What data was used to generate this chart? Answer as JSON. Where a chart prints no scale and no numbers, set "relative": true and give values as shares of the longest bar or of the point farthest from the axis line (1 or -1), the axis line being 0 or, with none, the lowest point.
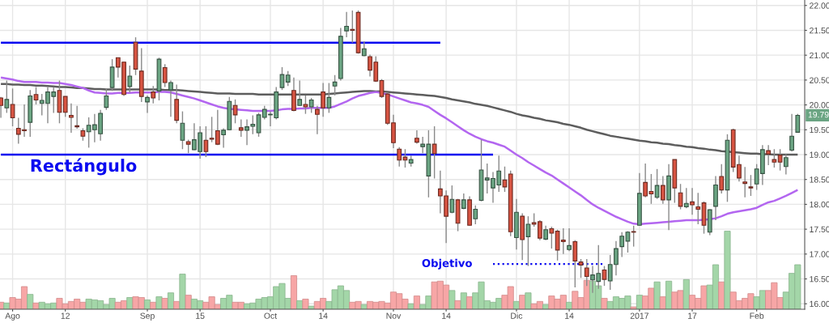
{
  "chart_data": [
    {
      "type": "candlestick",
      "categories": [
        null,
        null,
        "Ago",
        null,
        null,
        null,
        null,
        null,
        null,
        null,
        null,
        "12",
        null,
        null,
        null,
        null,
        null,
        null,
        null,
        null,
        null,
        null,
        null,
        null,
        null,
        "Sep",
        null,
        null,
        null,
        null,
        null,
        null,
        null,
        null,
        "15",
        null,
        null,
        null,
        null,
        null,
        null,
        null,
        null,
        null,
        null,
        null,
        "Oct",
        null,
        null,
        null,
        null,
        null,
        null,
        null,
        null,
        "14",
        null,
        null,
        null,
        null,
        null,
        null,
        null,
        null,
        null,
        null,
        null,
        "Nov",
        null,
        null,
        null,
        null,
        null,
        null,
        null,
        null,
        "14",
        null,
        null,
        null,
        null,
        null,
        null,
        null,
        null,
        null,
        null,
        null,
        "Dic",
        null,
        null,
        null,
        null,
        null,
        null,
        null,
        null,
        "14",
        null,
        null,
        null,
        null,
        null,
        null,
        null,
        null,
        null,
        null,
        null,
        "2017",
        null,
        null,
        null,
        null,
        null,
        null,
        null,
        null,
        "17",
        null,
        null,
        null,
        null,
        null,
        null,
        null,
        null,
        null,
        null,
        "Feb",
        null,
        null,
        null,
        null,
        null,
        null,
        null
      ],
      "ohlc": [
        [
          20.14,
          20.16,
          19.74,
          19.99
        ],
        [
          19.94,
          20.49,
          19.84,
          20.11
        ],
        [
          20.01,
          20.33,
          19.57,
          19.74
        ],
        [
          19.53,
          19.74,
          19.22,
          19.41
        ],
        [
          19.5,
          20.01,
          19.36,
          19.48
        ],
        [
          19.65,
          20.3,
          19.36,
          20.18
        ],
        [
          20.21,
          20.36,
          20.01,
          20.1
        ],
        [
          20.03,
          20.22,
          19.79,
          20.09
        ],
        [
          20.03,
          20.36,
          19.63,
          20.26
        ],
        [
          20.17,
          20.36,
          19.84,
          20.26
        ],
        [
          20.29,
          20.49,
          19.63,
          19.85
        ],
        [
          20.17,
          20.17,
          19.76,
          19.85
        ],
        [
          19.79,
          20.03,
          19.44,
          19.75
        ],
        [
          19.58,
          19.98,
          19.52,
          19.56
        ],
        [
          19.48,
          19.53,
          19.28,
          19.37
        ],
        [
          19.46,
          19.75,
          19.14,
          19.59
        ],
        [
          19.5,
          19.82,
          19.25,
          19.6
        ],
        [
          19.42,
          19.9,
          19.28,
          19.83
        ],
        [
          19.95,
          20.33,
          19.9,
          20.18
        ],
        [
          20.35,
          20.92,
          20.28,
          20.76
        ],
        [
          20.95,
          20.95,
          20.55,
          20.76
        ],
        [
          20.86,
          20.87,
          20.18,
          20.21
        ],
        [
          20.37,
          20.79,
          20.25,
          20.58
        ],
        [
          21.26,
          21.36,
          20.6,
          20.72
        ],
        [
          20.68,
          21.14,
          20.06,
          20.17
        ],
        [
          20.06,
          20.19,
          19.84,
          20.15
        ],
        [
          20.26,
          20.38,
          20.03,
          20.14
        ],
        [
          20.28,
          20.95,
          20.09,
          20.92
        ],
        [
          20.75,
          20.82,
          20.36,
          20.45
        ],
        [
          20.3,
          20.49,
          19.76,
          20.45
        ],
        [
          20.11,
          20.41,
          19.63,
          19.69
        ],
        [
          19.29,
          19.87,
          19.11,
          19.63
        ],
        [
          19.26,
          19.3,
          19.03,
          19.21
        ],
        [
          19.1,
          19.63,
          19.09,
          19.3
        ],
        [
          19.06,
          19.57,
          18.92,
          19.44
        ],
        [
          19.29,
          19.57,
          18.95,
          19.06
        ],
        [
          19.33,
          19.76,
          19.25,
          19.31
        ],
        [
          19.48,
          19.9,
          19.19,
          19.21
        ],
        [
          19.4,
          19.53,
          19.14,
          19.49
        ],
        [
          19.5,
          20.16,
          19.49,
          20.07
        ],
        [
          19.99,
          20.11,
          19.63,
          19.8
        ],
        [
          19.54,
          19.71,
          19.36,
          19.49
        ],
        [
          19.49,
          19.71,
          19.19,
          19.56
        ],
        [
          19.57,
          19.79,
          19.41,
          19.61
        ],
        [
          19.44,
          19.84,
          19.36,
          19.8
        ],
        [
          19.75,
          19.98,
          19.71,
          19.91
        ],
        [
          19.8,
          19.87,
          19.57,
          19.81
        ],
        [
          19.74,
          20.36,
          19.71,
          20.26
        ],
        [
          20.35,
          20.76,
          20.3,
          20.61
        ],
        [
          20.46,
          20.68,
          20.38,
          20.6
        ],
        [
          20.29,
          20.55,
          19.87,
          19.89
        ],
        [
          19.99,
          20.49,
          19.98,
          20.11
        ],
        [
          20.01,
          20.19,
          19.82,
          19.96
        ],
        [
          19.96,
          20.14,
          19.84,
          20.1
        ],
        [
          19.91,
          19.98,
          19.41,
          19.81
        ],
        [
          20.26,
          20.44,
          19.76,
          19.94
        ],
        [
          19.94,
          20.44,
          19.84,
          20.15
        ],
        [
          20.38,
          20.6,
          20.19,
          20.46
        ],
        [
          20.53,
          21.55,
          20.49,
          21.38
        ],
        [
          21.49,
          21.87,
          21.36,
          21.58
        ],
        [
          21.52,
          21.9,
          21.25,
          21.5
        ],
        [
          21.86,
          21.9,
          21.03,
          21.05
        ],
        [
          20.99,
          21.28,
          20.98,
          21.13
        ],
        [
          20.97,
          21.01,
          20.57,
          20.7
        ],
        [
          20.86,
          20.98,
          20.46,
          20.48
        ],
        [
          20.49,
          20.52,
          20.14,
          20.17
        ],
        [
          20.22,
          20.25,
          19.6,
          19.63
        ],
        [
          19.64,
          19.8,
          19.13,
          19.24
        ],
        [
          19.11,
          19.15,
          18.76,
          18.89
        ],
        [
          18.95,
          19.11,
          18.74,
          18.89
        ],
        [
          18.83,
          18.98,
          18.76,
          18.9
        ],
        [
          19.33,
          19.49,
          19.22,
          19.25
        ],
        [
          19.16,
          19.36,
          19.03,
          19.21
        ],
        [
          18.57,
          19.49,
          18.14,
          19.21
        ],
        [
          19.21,
          19.57,
          18.52,
          19.02
        ],
        [
          18.31,
          18.68,
          17.82,
          18.17
        ],
        [
          18.17,
          18.28,
          17.22,
          17.76
        ],
        [
          17.84,
          18.38,
          17.82,
          18.1
        ],
        [
          18.09,
          18.11,
          17.46,
          17.62
        ],
        [
          17.92,
          18.22,
          17.9,
          18.09
        ],
        [
          18.09,
          18.16,
          17.57,
          17.58
        ],
        [
          17.71,
          17.98,
          17.6,
          17.9
        ],
        [
          18.08,
          19.3,
          18.06,
          18.69
        ],
        [
          18.49,
          18.82,
          18.22,
          18.53
        ],
        [
          18.33,
          18.65,
          18.03,
          18.52
        ],
        [
          18.39,
          18.98,
          18.25,
          18.67
        ],
        [
          18.49,
          18.76,
          18.25,
          18.35
        ],
        [
          18.61,
          18.68,
          17.36,
          17.45
        ],
        [
          17.33,
          18.11,
          17.09,
          17.84
        ],
        [
          17.76,
          17.82,
          16.88,
          17.29
        ],
        [
          17.35,
          17.76,
          16.76,
          17.6
        ],
        [
          17.63,
          17.82,
          17.55,
          17.6
        ],
        [
          17.65,
          17.68,
          17.28,
          17.32
        ],
        [
          17.3,
          17.57,
          17.28,
          17.49
        ],
        [
          17.51,
          17.55,
          17.11,
          17.42
        ],
        [
          17.46,
          17.49,
          16.87,
          17.08
        ],
        [
          17.28,
          17.52,
          17.0,
          17.25
        ],
        [
          17.09,
          17.52,
          17.06,
          17.17
        ],
        [
          17.25,
          17.28,
          16.33,
          16.86
        ],
        [
          16.84,
          16.9,
          16.52,
          16.78
        ],
        [
          16.72,
          16.9,
          16.36,
          16.55
        ],
        [
          16.48,
          16.76,
          16.22,
          16.58
        ],
        [
          16.45,
          17.18,
          16.3,
          16.61
        ],
        [
          16.68,
          16.76,
          16.36,
          16.49
        ],
        [
          16.46,
          16.98,
          16.28,
          16.79
        ],
        [
          16.79,
          17.26,
          16.57,
          17.11
        ],
        [
          17.15,
          17.44,
          16.94,
          17.36
        ],
        [
          17.26,
          17.46,
          17.03,
          17.44
        ],
        [
          17.45,
          17.57,
          17.15,
          17.44
        ],
        [
          17.58,
          18.63,
          17.57,
          18.22
        ],
        [
          18.44,
          18.82,
          18.14,
          18.17
        ],
        [
          18.26,
          18.61,
          18.01,
          18.21
        ],
        [
          18.14,
          18.71,
          18.11,
          18.38
        ],
        [
          18.38,
          18.57,
          18.01,
          18.09
        ],
        [
          18.09,
          18.81,
          17.48,
          18.57
        ],
        [
          18.9,
          18.9,
          18.03,
          18.33
        ],
        [
          18.23,
          18.41,
          17.9,
          17.96
        ],
        [
          17.95,
          18.33,
          17.92,
          18.02
        ],
        [
          18.05,
          18.33,
          17.79,
          17.99
        ],
        [
          17.95,
          18.23,
          17.6,
          17.9
        ],
        [
          18.03,
          18.06,
          17.41,
          17.58
        ],
        [
          17.44,
          17.9,
          17.38,
          17.89
        ],
        [
          17.96,
          18.57,
          17.68,
          18.39
        ],
        [
          18.56,
          18.81,
          18.22,
          18.29
        ],
        [
          18.29,
          19.41,
          18.05,
          19.29
        ],
        [
          19.5,
          19.52,
          18.65,
          18.75
        ],
        [
          18.8,
          18.98,
          18.46,
          18.53
        ],
        [
          18.45,
          18.75,
          18.14,
          18.42
        ],
        [
          18.35,
          18.59,
          18.17,
          18.33
        ],
        [
          18.41,
          18.81,
          18.29,
          18.71
        ],
        [
          18.62,
          19.19,
          18.39,
          19.1
        ],
        [
          19.08,
          19.19,
          18.79,
          19.01
        ],
        [
          18.9,
          19.11,
          18.74,
          18.85
        ],
        [
          18.99,
          19.11,
          18.68,
          18.85
        ],
        [
          18.76,
          19.01,
          18.6,
          18.94
        ],
        [
          19.09,
          19.82,
          19.06,
          19.37
        ],
        [
          19.45,
          19.82,
          19.44,
          19.79
        ]
      ],
      "colors": [
        "#d75442",
        "#6ba583",
        "#d75442",
        "#d75442",
        "#d75442",
        "#6ba583",
        "#d75442",
        "#6ba583",
        "#6ba583",
        "#6ba583",
        "#d75442",
        "#d75442",
        "#d75442",
        "#d75442",
        "#d75442",
        "#6ba583",
        "#6ba583",
        "#6ba583",
        "#6ba583",
        "#6ba583",
        "#d75442",
        "#d75442",
        "#6ba583",
        "#d75442",
        "#d75442",
        "#6ba583",
        "#d75442",
        "#6ba583",
        "#d75442",
        "#6ba583",
        "#d75442",
        "#6ba583",
        "#d75442",
        "#6ba583",
        "#6ba583",
        "#d75442",
        "#d75442",
        "#d75442",
        "#6ba583",
        "#6ba583",
        "#d75442",
        "#d75442",
        "#6ba583",
        "#6ba583",
        "#6ba583",
        "#6ba583",
        "#6ba583",
        "#6ba583",
        "#6ba583",
        "#6ba583",
        "#d75442",
        "#6ba583",
        "#d75442",
        "#6ba583",
        "#d75442",
        "#d75442",
        "#6ba583",
        "#6ba583",
        "#6ba583",
        "#6ba583",
        "#d75442",
        "#d75442",
        "#6ba583",
        "#d75442",
        "#d75442",
        "#d75442",
        "#d75442",
        "#d75442",
        "#d75442",
        "#d75442",
        "#6ba583",
        "#d75442",
        "#6ba583",
        "#6ba583",
        "#d75442",
        "#d75442",
        "#d75442",
        "#6ba583",
        "#d75442",
        "#6ba583",
        "#d75442",
        "#6ba583",
        "#6ba583",
        "#6ba583",
        "#6ba583",
        "#6ba583",
        "#d75442",
        "#d75442",
        "#6ba583",
        "#d75442",
        "#6ba583",
        "#d75442",
        "#d75442",
        "#6ba583",
        "#d75442",
        "#d75442",
        "#d75442",
        "#6ba583",
        "#d75442",
        "#d75442",
        "#d75442",
        "#6ba583",
        "#6ba583",
        "#d75442",
        "#6ba583",
        "#6ba583",
        "#6ba583",
        "#6ba583",
        "#d75442",
        "#6ba583",
        "#d75442",
        "#d75442",
        "#6ba583",
        "#d75442",
        "#6ba583",
        "#d75442",
        "#d75442",
        "#6ba583",
        "#d75442",
        "#d75442",
        "#d75442",
        "#6ba583",
        "#6ba583",
        "#d75442",
        "#6ba583",
        "#d75442",
        "#d75442",
        "#d75442",
        "#d75442",
        "#6ba583",
        "#6ba583",
        "#d75442",
        "#d75442",
        "#d75442",
        "#6ba583",
        "#6ba583",
        "#6ba583"
      ],
      "series": [
        {
          "type": "line",
          "color": "#5d5d5d",
          "values": [
            20.42,
            20.42,
            20.41,
            20.41,
            20.4,
            20.4,
            20.39,
            20.39,
            20.38,
            20.37,
            20.36,
            20.36,
            20.35,
            20.34,
            20.34,
            20.33,
            20.32,
            20.32,
            20.31,
            20.31,
            20.31,
            20.31,
            20.31,
            20.31,
            20.31,
            20.31,
            20.31,
            20.31,
            20.3,
            20.3,
            20.3,
            20.29,
            20.28,
            20.27,
            20.26,
            20.25,
            20.24,
            20.23,
            20.23,
            20.23,
            20.22,
            20.22,
            20.22,
            20.22,
            20.21,
            20.21,
            20.21,
            20.21,
            20.21,
            20.21,
            20.21,
            20.21,
            20.21,
            20.21,
            20.21,
            20.21,
            20.22,
            20.23,
            20.24,
            20.25,
            20.26,
            20.27,
            20.28,
            20.28,
            20.27,
            20.27,
            20.26,
            20.25,
            20.24,
            20.23,
            20.22,
            20.21,
            20.2,
            20.19,
            20.18,
            20.16,
            20.14,
            20.11,
            20.09,
            20.07,
            20.05,
            20.02,
            20.0,
            19.98,
            19.95,
            19.92,
            19.89,
            19.86,
            19.82,
            19.79,
            19.77,
            19.74,
            19.72,
            19.69,
            19.67,
            19.65,
            19.62,
            19.6,
            19.57,
            19.54,
            19.5,
            19.47,
            19.44,
            19.41,
            19.38,
            19.36,
            19.34,
            19.32,
            19.3,
            19.28,
            19.27,
            19.25,
            19.24,
            19.22,
            19.21,
            19.19,
            19.18,
            19.16,
            19.15,
            19.13,
            19.12,
            19.1,
            19.09,
            19.07,
            19.06,
            19.05,
            19.04,
            19.03,
            19.02,
            19.02,
            19.01,
            19.01,
            19.0,
            19.0,
            19.0,
            19.0,
            19.0
          ]
        },
        {
          "type": "line",
          "color": "#b366f0",
          "values": [
            20.55,
            20.53,
            20.51,
            20.48,
            20.46,
            20.46,
            20.46,
            20.45,
            20.45,
            20.44,
            20.44,
            20.42,
            20.4,
            20.37,
            20.34,
            20.29,
            20.25,
            20.24,
            20.23,
            20.23,
            20.24,
            20.24,
            20.24,
            20.25,
            20.25,
            20.25,
            20.25,
            20.26,
            20.26,
            20.25,
            20.22,
            20.19,
            20.16,
            20.13,
            20.09,
            20.05,
            20.01,
            19.97,
            19.94,
            19.92,
            19.91,
            19.9,
            19.89,
            19.88,
            19.88,
            19.88,
            19.88,
            19.89,
            19.91,
            19.92,
            19.92,
            19.93,
            19.93,
            19.94,
            19.94,
            19.94,
            19.94,
            19.97,
            20.02,
            20.07,
            20.13,
            20.18,
            20.21,
            20.24,
            20.26,
            20.24,
            20.21,
            20.17,
            20.13,
            20.09,
            20.05,
            20.03,
            20.0,
            19.96,
            19.88,
            19.8,
            19.73,
            19.65,
            19.57,
            19.49,
            19.42,
            19.36,
            19.31,
            19.27,
            19.24,
            19.2,
            19.16,
            19.08,
            19.0,
            18.93,
            18.85,
            18.78,
            18.71,
            18.64,
            18.58,
            18.5,
            18.42,
            18.34,
            18.26,
            18.18,
            18.09,
            18.0,
            17.93,
            17.87,
            17.81,
            17.75,
            17.7,
            17.65,
            17.61,
            17.6,
            17.61,
            17.62,
            17.63,
            17.64,
            17.65,
            17.66,
            17.67,
            17.68,
            17.68,
            17.68,
            17.69,
            17.7,
            17.72,
            17.76,
            17.81,
            17.84,
            17.86,
            17.88,
            17.9,
            17.93,
            17.99,
            18.04,
            18.07,
            18.12,
            18.17,
            18.23,
            18.29
          ]
        },
        {
          "type": "line",
          "color": "#0a0af0",
          "values": [
            21.25,
            21.25,
            21.25,
            21.25,
            21.25,
            21.25,
            21.25,
            21.25,
            21.25,
            21.25,
            21.25,
            21.25,
            21.25,
            21.25,
            21.25,
            21.25,
            21.25,
            21.25,
            21.25,
            21.25,
            21.25,
            21.25,
            21.25,
            21.25,
            21.25,
            21.25,
            21.25,
            21.25,
            21.25,
            21.25,
            21.25,
            21.25,
            21.25,
            21.25,
            21.25,
            21.25,
            21.25,
            21.25,
            21.25,
            21.25,
            21.25,
            21.25,
            21.25,
            21.25,
            21.25,
            21.25,
            21.25,
            21.25,
            21.25,
            21.25,
            21.25,
            21.25,
            21.25,
            21.25,
            21.25,
            21.25,
            21.25,
            21.25,
            21.25,
            21.25,
            21.25,
            21.25,
            21.25,
            21.25,
            21.25,
            21.25,
            21.25,
            21.25,
            21.25,
            21.25,
            21.25,
            21.25,
            21.25,
            21.25,
            21.25,
            21.25,
            null,
            null,
            null,
            null,
            null,
            null,
            null,
            null,
            null,
            null,
            null,
            null,
            null,
            null,
            null,
            null,
            null,
            null,
            null,
            null,
            null,
            null,
            null,
            null,
            null,
            null,
            null,
            null,
            null,
            null,
            null,
            null,
            null,
            null,
            null,
            null,
            null,
            null,
            null,
            null,
            null,
            null,
            null,
            null,
            null,
            null,
            null,
            null,
            null,
            null,
            null,
            null,
            null,
            null,
            null,
            null,
            null,
            null,
            null,
            null,
            null
          ]
        },
        {
          "type": "line",
          "color": "#0a0af0",
          "values": [
            19.0,
            19.0,
            19.0,
            19.0,
            19.0,
            19.0,
            19.0,
            19.0,
            19.0,
            19.0,
            19.0,
            19.0,
            19.0,
            19.0,
            19.0,
            19.0,
            19.0,
            19.0,
            19.0,
            19.0,
            19.0,
            19.0,
            19.0,
            19.0,
            19.0,
            19.0,
            19.0,
            19.0,
            19.0,
            19.0,
            19.0,
            19.0,
            19.0,
            19.0,
            19.0,
            19.0,
            19.0,
            19.0,
            19.0,
            19.0,
            19.0,
            19.0,
            19.0,
            19.0,
            19.0,
            19.0,
            19.0,
            19.0,
            19.0,
            19.0,
            19.0,
            19.0,
            19.0,
            19.0,
            19.0,
            19.0,
            19.0,
            19.0,
            19.0,
            19.0,
            19.0,
            19.0,
            19.0,
            19.0,
            19.0,
            19.0,
            19.0,
            19.0,
            19.0,
            19.0,
            19.0,
            19.0,
            19.0,
            19.0,
            19.0,
            19.0,
            19.0,
            19.0,
            19.0,
            19.0,
            19.0,
            19.0,
            19.0,
            19.0,
            19.0,
            null,
            null,
            null,
            null,
            null,
            null,
            null,
            null,
            null,
            null,
            null,
            null,
            null,
            null,
            null,
            null,
            null,
            null,
            null,
            null,
            null,
            null,
            null,
            null,
            null,
            null,
            null,
            null,
            null,
            null,
            null,
            null,
            null,
            null,
            null,
            null,
            null,
            null,
            null,
            null,
            null,
            null,
            null,
            null,
            null,
            null,
            null,
            null,
            null,
            null,
            null,
            null
          ]
        },
        {
          "type": "line",
          "color": "#0a0af0",
          "line_style": "dotted",
          "values": [
            null,
            null,
            null,
            null,
            null,
            null,
            null,
            null,
            null,
            null,
            null,
            null,
            null,
            null,
            null,
            null,
            null,
            null,
            null,
            null,
            null,
            null,
            null,
            null,
            null,
            null,
            null,
            null,
            null,
            null,
            null,
            null,
            null,
            null,
            null,
            null,
            null,
            null,
            null,
            null,
            null,
            null,
            null,
            null,
            null,
            null,
            null,
            null,
            null,
            null,
            null,
            null,
            null,
            null,
            null,
            null,
            null,
            null,
            null,
            null,
            null,
            null,
            null,
            null,
            null,
            null,
            null,
            null,
            null,
            null,
            null,
            null,
            null,
            null,
            null,
            null,
            null,
            null,
            null,
            null,
            null,
            null,
            null,
            null,
            16.8,
            16.8,
            16.8,
            16.8,
            16.8,
            16.8,
            16.8,
            16.8,
            16.8,
            16.8,
            16.8,
            16.8,
            16.8,
            16.8,
            16.8,
            16.8,
            16.8,
            16.8,
            16.8,
            16.8,
            null,
            null,
            null,
            null,
            null,
            null,
            null,
            null,
            null,
            null,
            null,
            null,
            null,
            null,
            null,
            null,
            null,
            null,
            null,
            null,
            null,
            null,
            null,
            null,
            null,
            null,
            null,
            null,
            null,
            null,
            null,
            null,
            null
          ]
        }
      ],
      "ylim": [
        15.89,
        22.11
      ],
      "yticks": [
        {
          "value": 16,
          "label": "16.00"
        },
        {
          "value": 16.5,
          "label": "16.50"
        },
        {
          "value": 17,
          "label": "17.00"
        },
        {
          "value": 17.5,
          "label": "17.50"
        },
        {
          "value": 18,
          "label": "18.00"
        },
        {
          "value": 18.5,
          "label": "18.50"
        },
        {
          "value": 19,
          "label": "19.00"
        },
        {
          "value": 19.5,
          "label": "19.50"
        },
        {
          "value": 20,
          "label": "20.00"
        },
        {
          "value": 20.5,
          "label": "20.50"
        },
        {
          "value": 21,
          "label": "21.00"
        },
        {
          "value": 21.5,
          "label": "21.50"
        },
        {
          "value": 22,
          "label": "22.00"
        }
      ],
      "annotations": [
        "Rectángulo",
        "Objetivo",
        {
          "text": "19.79",
          "y": 19.79
        }
      ],
      "grid": true
    },
    {
      "type": "bar",
      "relative": true,
      "categories": [
        null,
        null,
        null,
        null,
        null,
        null,
        null,
        null,
        null,
        null,
        null,
        null,
        null,
        null,
        null,
        null,
        null,
        null,
        null,
        null,
        null,
        null,
        null,
        null,
        null,
        null,
        null,
        null,
        null,
        null,
        null,
        null,
        null,
        null,
        null,
        null,
        null,
        null,
        null,
        null,
        null,
        null,
        null,
        null,
        null,
        null,
        null,
        null,
        null,
        null,
        null,
        null,
        null,
        null,
        null,
        null,
        null,
        null,
        null,
        null,
        null,
        null,
        null,
        null,
        null,
        null,
        null,
        null,
        null,
        null,
        null,
        null,
        null,
        null,
        null,
        null,
        null,
        null,
        null,
        null,
        null,
        null,
        null,
        null,
        null,
        null,
        null,
        null,
        null,
        null,
        null,
        null,
        null,
        null,
        null,
        null,
        null,
        null,
        null,
        null,
        null,
        null,
        null,
        null,
        null,
        null,
        null,
        null,
        null,
        null,
        null,
        null,
        null,
        null,
        null,
        null,
        null,
        null,
        null,
        null,
        null,
        null,
        null,
        null,
        null,
        null,
        null,
        null,
        null,
        null,
        null,
        null,
        null,
        null,
        null,
        null,
        null
      ],
      "values": [
        0.09,
        0.08,
        0.15,
        0.13,
        0.29,
        0.19,
        0.08,
        0.09,
        0.07,
        0.08,
        0.14,
        0.07,
        0.1,
        0.13,
        0.09,
        0.13,
        0.12,
        0.11,
        0.06,
        0.14,
        0.09,
        0.11,
        0.15,
        0.16,
        0.15,
        0.12,
        0.09,
        0.16,
        0.14,
        0.21,
        0.1,
        0.45,
        0.18,
        0.13,
        0.11,
        0.09,
        0.16,
        0.06,
        0.14,
        0.18,
        0.09,
        0.09,
        0.07,
        0.08,
        0.13,
        0.15,
        0.16,
        0.29,
        0.33,
        0.14,
        0.43,
        0.11,
        0.13,
        0.04,
        0.1,
        0.14,
        0.1,
        0.25,
        0.3,
        0.24,
        0.09,
        0.1,
        0.06,
        0.1,
        0.09,
        0.1,
        0.08,
        0.22,
        0.2,
        0.13,
        0.07,
        0.17,
        0.06,
        0.17,
        0.35,
        0.36,
        0.31,
        0.24,
        0.11,
        0.21,
        0.16,
        0.21,
        0.35,
        0.11,
        0.09,
        0.14,
        0.18,
        0.29,
        0.1,
        0.18,
        0.21,
        0.07,
        0.1,
        0.06,
        0.17,
        0.13,
        0.18,
        0.09,
        0.23,
        0.15,
        0.37,
        0.36,
        0.3,
        0.14,
        0.1,
        0.16,
        0.14,
        0.17,
        0.03,
        0.18,
        0.17,
        0.27,
        0.35,
        0.16,
        0.36,
        0.22,
        0.24,
        0.38,
        0.18,
        0.14,
        0.3,
        0.31,
        0.57,
        0.35,
        1.0,
        0.22,
        0.11,
        0.14,
        0.2,
        0.16,
        0.24,
        0.24,
        0.34,
        0.15,
        0.22,
        0.46,
        0.57
      ],
      "colors": [
        "#f7a6a6",
        "#a3d6a8",
        "#f7a6a6",
        "#f7a6a6",
        "#f7a6a6",
        "#a3d6a8",
        "#f7a6a6",
        "#a3d6a8",
        "#a3d6a8",
        "#a3d6a8",
        "#f7a6a6",
        "#f7a6a6",
        "#f7a6a6",
        "#f7a6a6",
        "#f7a6a6",
        "#a3d6a8",
        "#a3d6a8",
        "#a3d6a8",
        "#a3d6a8",
        "#a3d6a8",
        "#f7a6a6",
        "#f7a6a6",
        "#a3d6a8",
        "#f7a6a6",
        "#f7a6a6",
        "#a3d6a8",
        "#f7a6a6",
        "#a3d6a8",
        "#f7a6a6",
        "#a3d6a8",
        "#f7a6a6",
        "#a3d6a8",
        "#f7a6a6",
        "#a3d6a8",
        "#a3d6a8",
        "#f7a6a6",
        "#f7a6a6",
        "#f7a6a6",
        "#a3d6a8",
        "#a3d6a8",
        "#f7a6a6",
        "#f7a6a6",
        "#a3d6a8",
        "#a3d6a8",
        "#a3d6a8",
        "#a3d6a8",
        "#a3d6a8",
        "#a3d6a8",
        "#a3d6a8",
        "#a3d6a8",
        "#f7a6a6",
        "#a3d6a8",
        "#f7a6a6",
        "#a3d6a8",
        "#f7a6a6",
        "#f7a6a6",
        "#a3d6a8",
        "#a3d6a8",
        "#a3d6a8",
        "#a3d6a8",
        "#f7a6a6",
        "#f7a6a6",
        "#a3d6a8",
        "#f7a6a6",
        "#f7a6a6",
        "#f7a6a6",
        "#f7a6a6",
        "#f7a6a6",
        "#f7a6a6",
        "#f7a6a6",
        "#a3d6a8",
        "#f7a6a6",
        "#a3d6a8",
        "#a3d6a8",
        "#f7a6a6",
        "#f7a6a6",
        "#f7a6a6",
        "#a3d6a8",
        "#f7a6a6",
        "#a3d6a8",
        "#f7a6a6",
        "#a3d6a8",
        "#a3d6a8",
        "#a3d6a8",
        "#a3d6a8",
        "#a3d6a8",
        "#f7a6a6",
        "#f7a6a6",
        "#a3d6a8",
        "#f7a6a6",
        "#a3d6a8",
        "#f7a6a6",
        "#f7a6a6",
        "#a3d6a8",
        "#f7a6a6",
        "#f7a6a6",
        "#f7a6a6",
        "#a3d6a8",
        "#f7a6a6",
        "#f7a6a6",
        "#f7a6a6",
        "#a3d6a8",
        "#a3d6a8",
        "#f7a6a6",
        "#a3d6a8",
        "#a3d6a8",
        "#a3d6a8",
        "#a3d6a8",
        "#f7a6a6",
        "#a3d6a8",
        "#f7a6a6",
        "#f7a6a6",
        "#a3d6a8",
        "#f7a6a6",
        "#a3d6a8",
        "#f7a6a6",
        "#f7a6a6",
        "#a3d6a8",
        "#f7a6a6",
        "#f7a6a6",
        "#f7a6a6",
        "#a3d6a8",
        "#a3d6a8",
        "#f7a6a6",
        "#a3d6a8",
        "#f7a6a6",
        "#f7a6a6",
        "#f7a6a6",
        "#f7a6a6",
        "#a3d6a8",
        "#a3d6a8",
        "#f7a6a6",
        "#f7a6a6",
        "#f7a6a6",
        "#a3d6a8",
        "#a3d6a8",
        "#a3d6a8"
      ]
    }
  ]
}
